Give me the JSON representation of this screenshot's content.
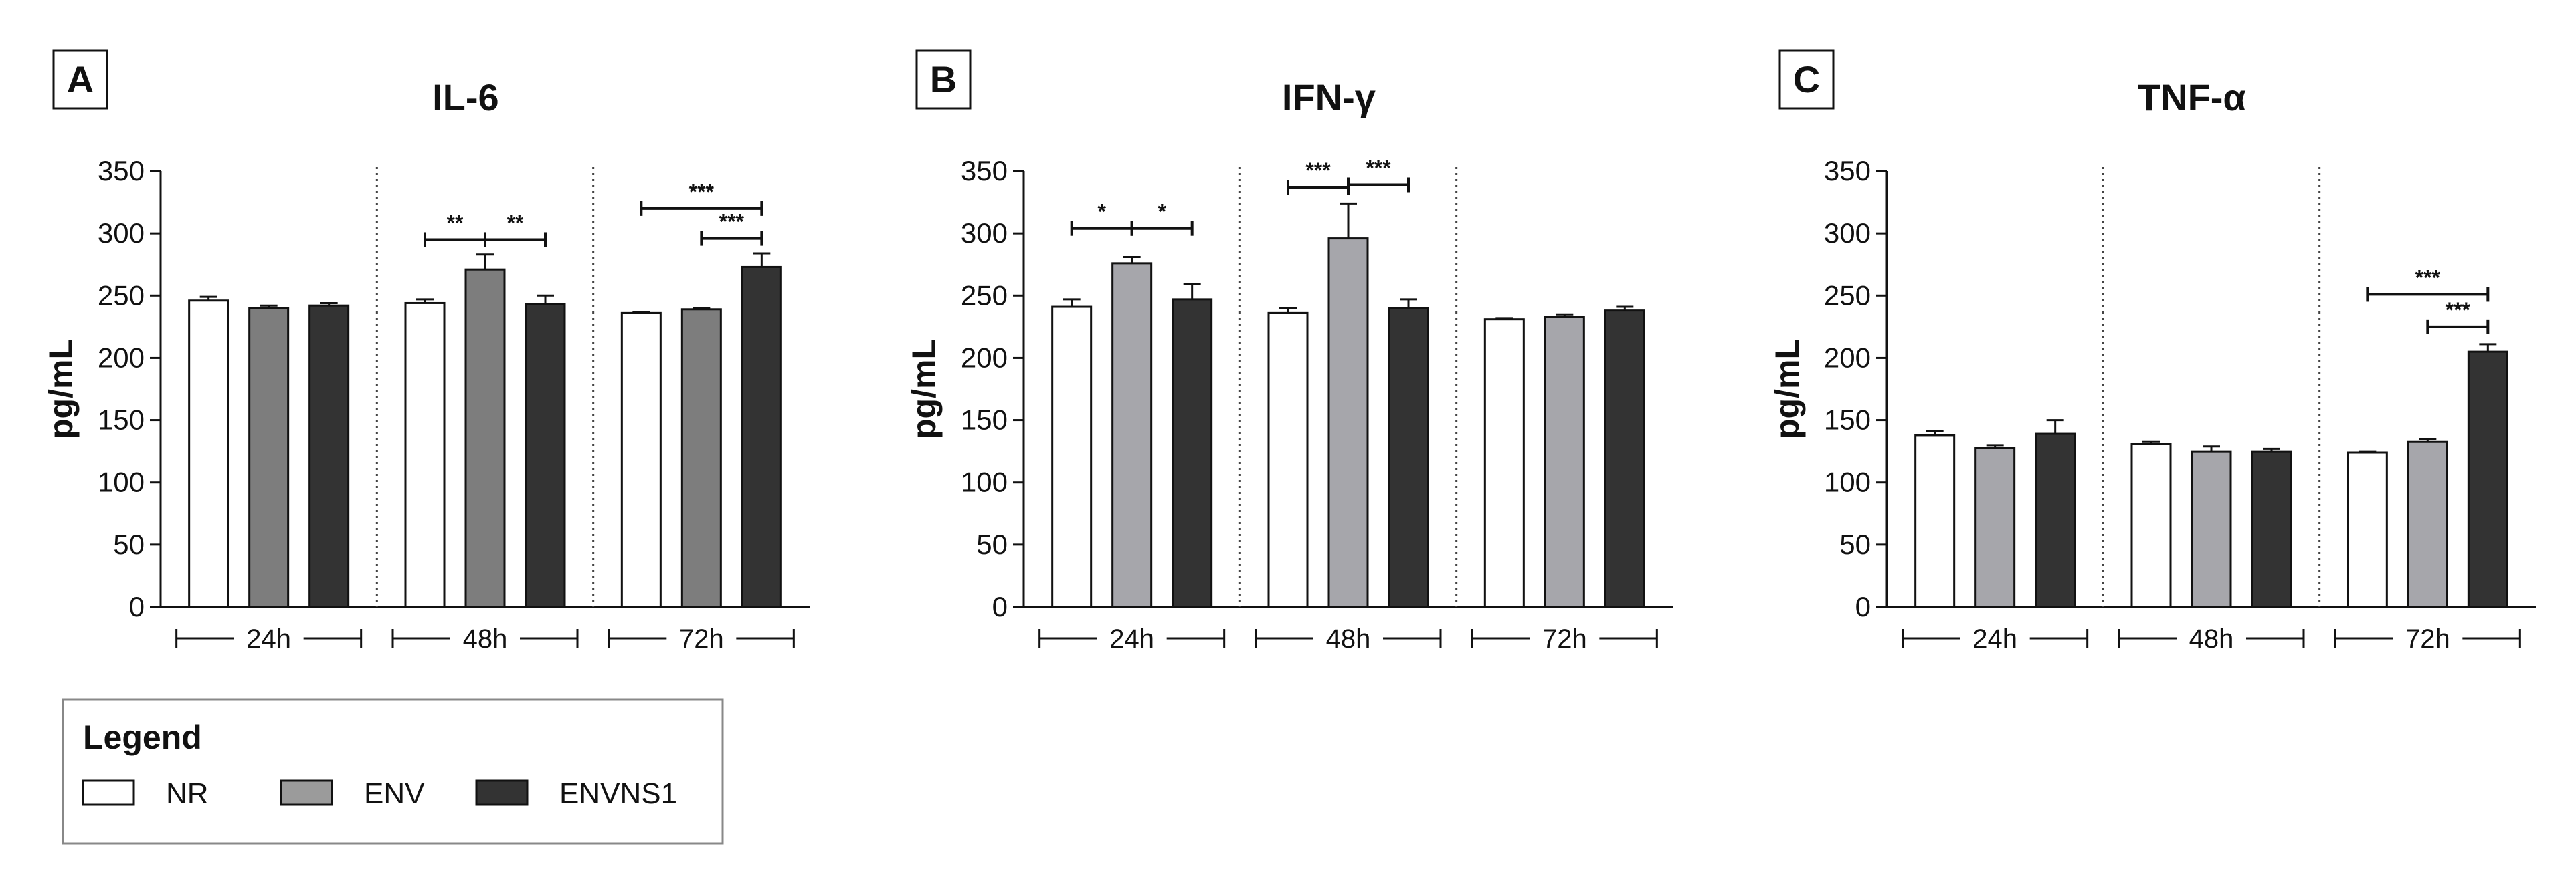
{
  "legend": {
    "title": "Legend",
    "items": [
      {
        "name": "NR",
        "color": "#ffffff"
      },
      {
        "name": "ENV",
        "color": "#9b9b9b"
      },
      {
        "name": "ENVNS1",
        "color": "#333333"
      }
    ]
  },
  "chart_data": [
    {
      "type": "bar",
      "panel": "A",
      "title": "IL-6",
      "ylabel": "pg/mL",
      "xlabel": "",
      "ylim": [
        0,
        350
      ],
      "yticks": [
        0,
        50,
        100,
        150,
        200,
        250,
        300,
        350
      ],
      "grid": false,
      "groups": [
        "24h",
        "48h",
        "72h"
      ],
      "series": [
        {
          "name": "NR",
          "color": "#ffffff",
          "values": [
            246,
            244,
            236
          ],
          "errors": [
            3,
            3,
            1
          ]
        },
        {
          "name": "ENV",
          "color": "#7d7d7d",
          "values": [
            240,
            271,
            239
          ],
          "errors": [
            2,
            12,
            1
          ]
        },
        {
          "name": "ENVNS1",
          "color": "#333333",
          "values": [
            242,
            243,
            273
          ],
          "errors": [
            2,
            7,
            11
          ]
        }
      ],
      "significance": [
        {
          "group": 1,
          "from": 0,
          "to": 1,
          "label": "**",
          "y": 295
        },
        {
          "group": 1,
          "from": 1,
          "to": 2,
          "label": "**",
          "y": 295
        },
        {
          "group": 2,
          "from": 0,
          "to": 2,
          "label": "***",
          "y": 320
        },
        {
          "group": 2,
          "from": 1,
          "to": 2,
          "label": "***",
          "y": 296
        }
      ]
    },
    {
      "type": "bar",
      "panel": "B",
      "title": "IFN-γ",
      "ylabel": "pg/mL",
      "xlabel": "",
      "ylim": [
        0,
        350
      ],
      "yticks": [
        0,
        50,
        100,
        150,
        200,
        250,
        300,
        350
      ],
      "grid": false,
      "groups": [
        "24h",
        "48h",
        "72h"
      ],
      "series": [
        {
          "name": "NR",
          "color": "#ffffff",
          "values": [
            241,
            236,
            231
          ],
          "errors": [
            6,
            4,
            1
          ]
        },
        {
          "name": "ENV",
          "color": "#a6a6ab",
          "values": [
            276,
            296,
            233
          ],
          "errors": [
            5,
            28,
            2
          ]
        },
        {
          "name": "ENVNS1",
          "color": "#333333",
          "values": [
            247,
            240,
            238
          ],
          "errors": [
            12,
            7,
            3
          ]
        }
      ],
      "significance": [
        {
          "group": 0,
          "from": 0,
          "to": 1,
          "label": "*",
          "y": 304
        },
        {
          "group": 0,
          "from": 1,
          "to": 2,
          "label": "*",
          "y": 304
        },
        {
          "group": 1,
          "from": 0,
          "to": 1,
          "label": "***",
          "y": 337
        },
        {
          "group": 1,
          "from": 1,
          "to": 2,
          "label": "***",
          "y": 339
        }
      ]
    },
    {
      "type": "bar",
      "panel": "C",
      "title": "TNF-α",
      "ylabel": "pg/mL",
      "xlabel": "",
      "ylim": [
        0,
        350
      ],
      "yticks": [
        0,
        50,
        100,
        150,
        200,
        250,
        300,
        350
      ],
      "grid": false,
      "groups": [
        "24h",
        "48h",
        "72h"
      ],
      "series": [
        {
          "name": "NR",
          "color": "#ffffff",
          "values": [
            138,
            131,
            124
          ],
          "errors": [
            3,
            2,
            1
          ]
        },
        {
          "name": "ENV",
          "color": "#a6a6ab",
          "values": [
            128,
            125,
            133
          ],
          "errors": [
            2,
            4,
            2
          ]
        },
        {
          "name": "ENVNS1",
          "color": "#333333",
          "values": [
            139,
            125,
            205
          ],
          "errors": [
            11,
            2,
            6
          ]
        }
      ],
      "significance": [
        {
          "group": 2,
          "from": 0,
          "to": 2,
          "label": "***",
          "y": 251
        },
        {
          "group": 2,
          "from": 1,
          "to": 2,
          "label": "***",
          "y": 225
        }
      ]
    }
  ]
}
